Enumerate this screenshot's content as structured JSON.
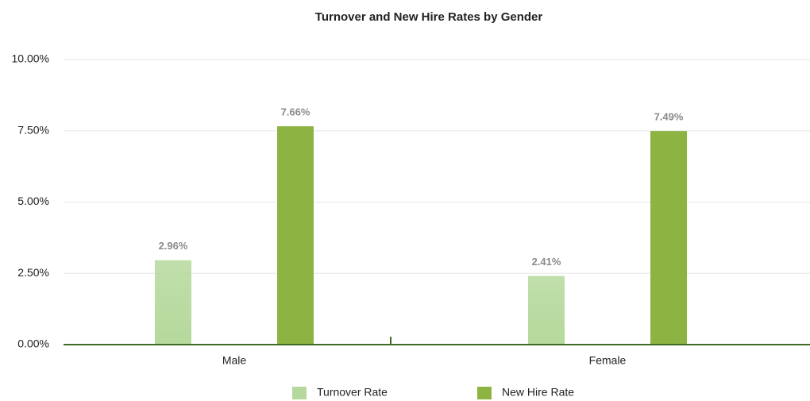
{
  "chart_data": {
    "type": "bar",
    "title": "Turnover and New Hire Rates by Gender",
    "categories": [
      "Male",
      "Female"
    ],
    "series": [
      {
        "name": "Turnover Rate",
        "color": "#b5d99c",
        "values": [
          2.96,
          2.41
        ],
        "value_labels": [
          "2.96%",
          "2.41%"
        ]
      },
      {
        "name": "New Hire Rate",
        "color": "#8db443",
        "values": [
          7.66,
          7.49
        ],
        "value_labels": [
          "7.66%",
          "7.49%"
        ]
      }
    ],
    "ylim": [
      0,
      10
    ],
    "yticks": [
      {
        "value": 0,
        "label": "0.00%"
      },
      {
        "value": 2.5,
        "label": "2.50%"
      },
      {
        "value": 5,
        "label": "5.00%"
      },
      {
        "value": 7.5,
        "label": "7.50%"
      },
      {
        "value": 10,
        "label": "10.00%"
      }
    ],
    "grid": true,
    "legend": "bottom"
  }
}
